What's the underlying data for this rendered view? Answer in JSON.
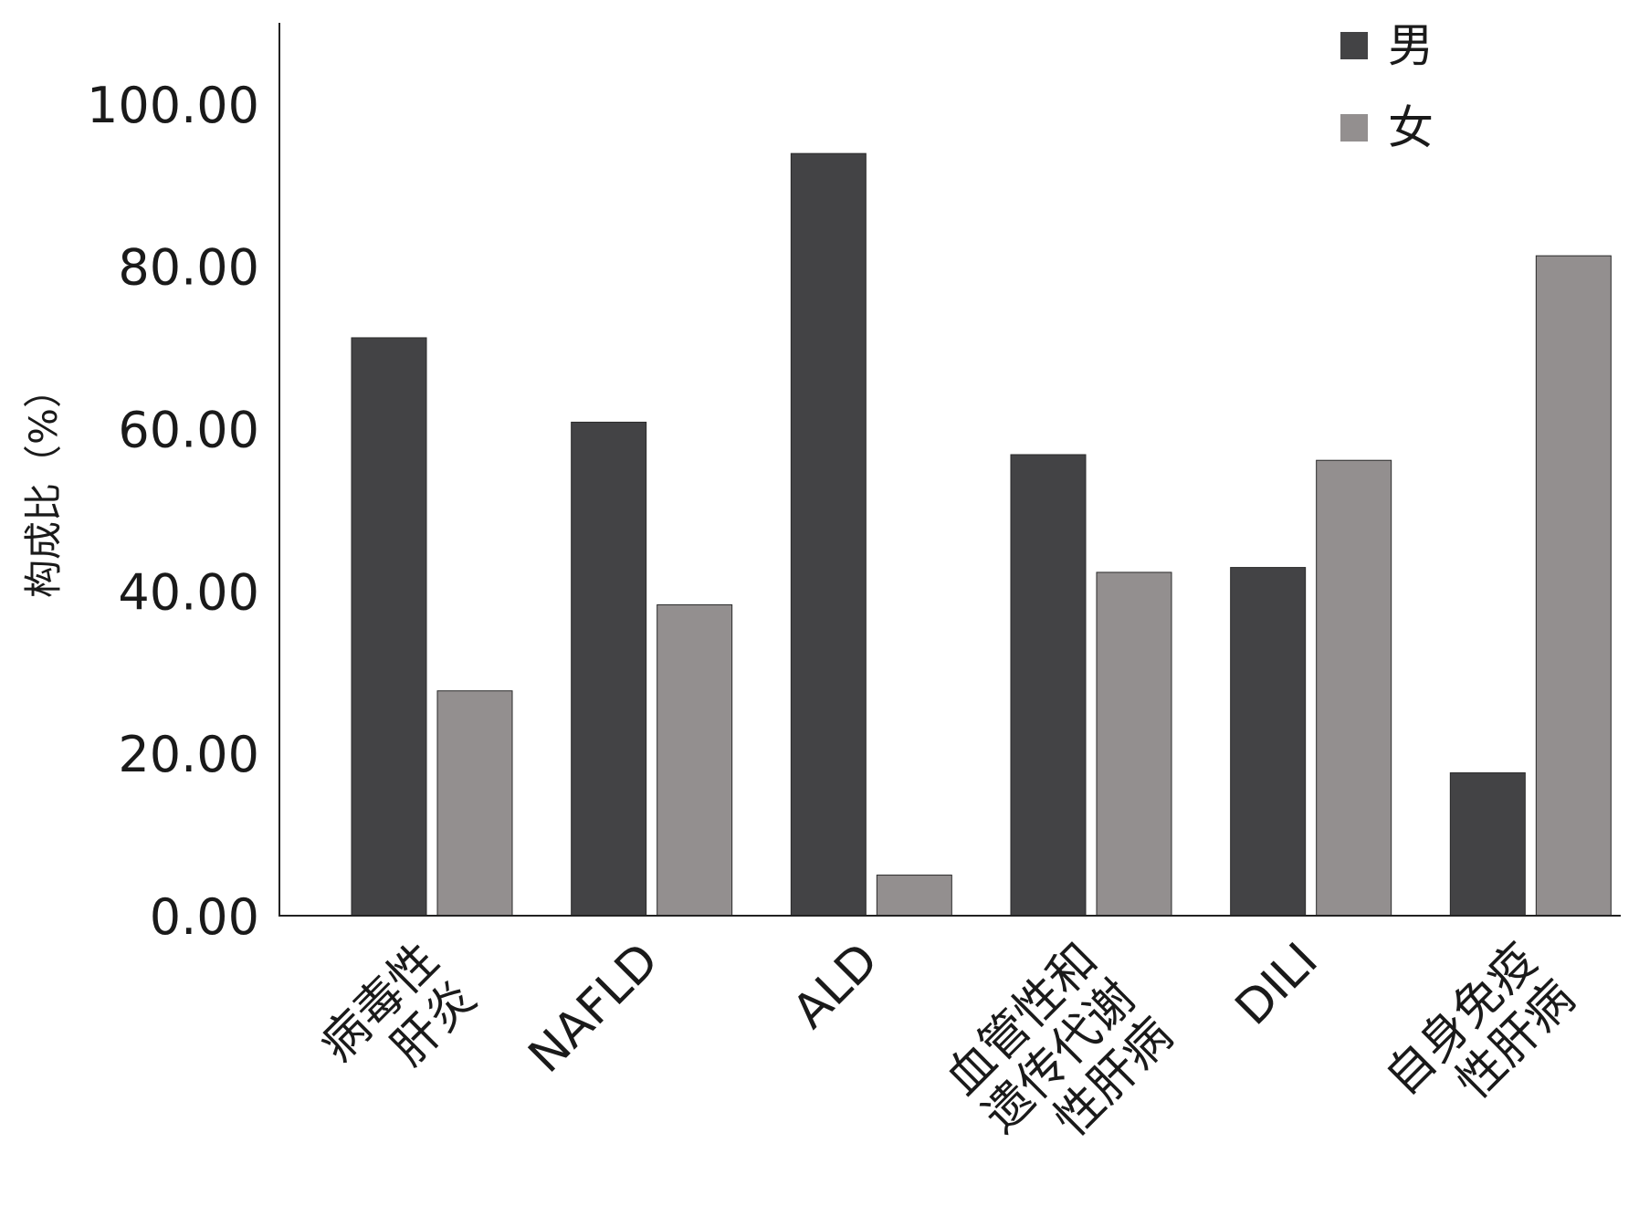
{
  "chart_data": {
    "type": "bar",
    "title": "",
    "xlabel": "",
    "ylabel": "构成比（%）",
    "ylim": [
      0,
      110
    ],
    "yticks": [
      "0.00",
      "20.00",
      "40.00",
      "60.00",
      "80.00",
      "100.00"
    ],
    "ytick_values": [
      0,
      20,
      40,
      60,
      80,
      100
    ],
    "grid": false,
    "legend_position": "top-right",
    "categories": [
      [
        "病毒性",
        "肝炎"
      ],
      [
        "NAFLD"
      ],
      [
        "ALD"
      ],
      [
        "血管性和",
        "遗传代谢",
        "性肝病"
      ],
      [
        "DILI"
      ],
      [
        "自身免疫",
        "性肝病"
      ]
    ],
    "series": [
      {
        "name": "男",
        "color": "#434345",
        "values": [
          71.2,
          60.8,
          93.9,
          56.8,
          42.9,
          17.6
        ]
      },
      {
        "name": "女",
        "color": "#938f8f",
        "values": [
          27.7,
          38.3,
          5.0,
          42.3,
          56.1,
          81.3
        ]
      }
    ]
  }
}
